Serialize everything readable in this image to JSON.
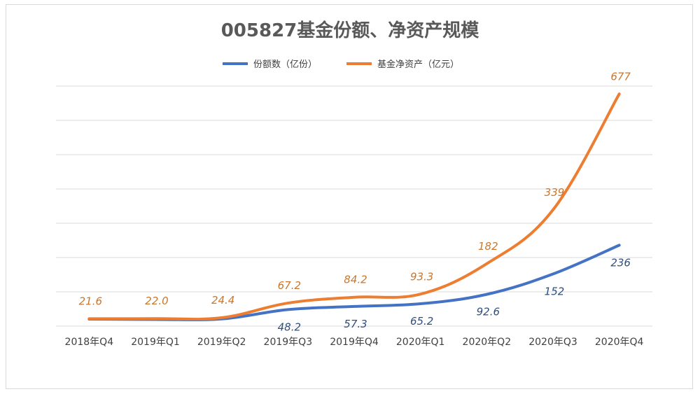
{
  "chart_data": {
    "type": "line",
    "title": "005827基金份额、净资产规模",
    "categories": [
      "2018年Q4",
      "2019年Q1",
      "2019年Q2",
      "2019年Q3",
      "2019年Q4",
      "2020年Q1",
      "2020年Q2",
      "2020年Q3",
      "2020年Q4"
    ],
    "series": [
      {
        "name": "份额数（亿份）",
        "color": "#4472c4",
        "values": [
          20.5,
          19.5,
          21.0,
          48.2,
          57.3,
          65.2,
          92.6,
          152,
          236
        ],
        "labels": [
          "",
          "",
          "",
          "48.2",
          "57.3",
          "65.2",
          "92.6",
          "152",
          "236"
        ]
      },
      {
        "name": "基金净资产（亿元）",
        "color": "#ed7d31",
        "values": [
          21.6,
          22.0,
          24.4,
          67.2,
          84.2,
          93.3,
          182,
          339,
          677
        ],
        "labels": [
          "21.6",
          "22.0",
          "24.4",
          "67.2",
          "84.2",
          "93.3",
          "182",
          "339",
          "677"
        ]
      }
    ],
    "legend_position": "top",
    "ylim": [
      0,
      800
    ],
    "grid": true
  }
}
